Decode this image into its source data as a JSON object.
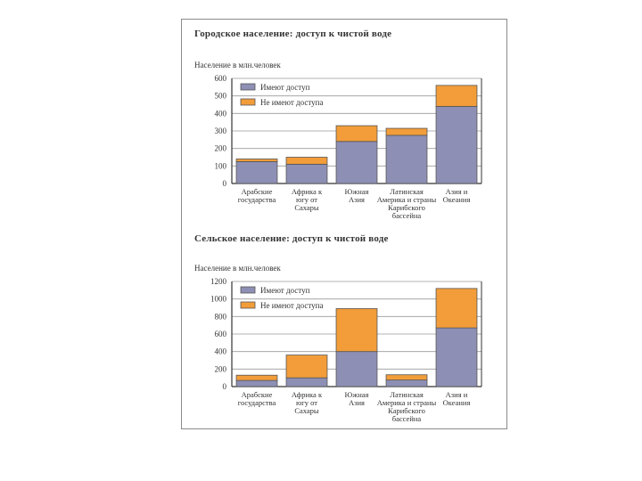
{
  "colors": {
    "access": "#8e8fb5",
    "no_access": "#f29d3a",
    "grid": "#9a9a9a",
    "axis": "#333333"
  },
  "legend": {
    "access": "Имеют доступ",
    "no_access": "Не имеют доступа"
  },
  "chart_data": [
    {
      "type": "bar",
      "stacked": true,
      "title": "Городское население: доступ к чистой воде",
      "ylabel": "Население в млн.человек",
      "ylim": [
        0,
        600
      ],
      "yticks": [
        0,
        100,
        200,
        300,
        400,
        500,
        600
      ],
      "grid": true,
      "legend_position": "top-left",
      "categories": [
        [
          "Арабские",
          "государства"
        ],
        [
          "Африка к",
          "югу от",
          "Сахары"
        ],
        [
          "Южная",
          "Азия"
        ],
        [
          "Латинская",
          "Америка и страны",
          "Карибского",
          "бассейна"
        ],
        [
          "Азия и",
          "Океания"
        ]
      ],
      "series": [
        {
          "name": "Имеют доступ",
          "values": [
            125,
            110,
            240,
            275,
            440
          ]
        },
        {
          "name": "Не имеют доступа",
          "values": [
            15,
            40,
            90,
            40,
            120
          ]
        }
      ]
    },
    {
      "type": "bar",
      "stacked": true,
      "title": "Сельское население: доступ к чистой воде",
      "ylabel": "Население в млн.человек",
      "ylim": [
        0,
        1200
      ],
      "yticks": [
        0,
        200,
        400,
        600,
        800,
        1000,
        1200
      ],
      "grid": true,
      "legend_position": "top-left",
      "categories": [
        [
          "Арабские",
          "государства"
        ],
        [
          "Африка к",
          "югу от",
          "Сахары"
        ],
        [
          "Южная",
          "Азия"
        ],
        [
          "Латинская",
          "Америка и страны",
          "Карибского",
          "бассейна"
        ],
        [
          "Азия и",
          "Океания"
        ]
      ],
      "series": [
        {
          "name": "Имеют доступ",
          "values": [
            70,
            100,
            400,
            75,
            670
          ]
        },
        {
          "name": "Не имеют доступа",
          "values": [
            60,
            260,
            490,
            60,
            450
          ]
        }
      ]
    }
  ]
}
